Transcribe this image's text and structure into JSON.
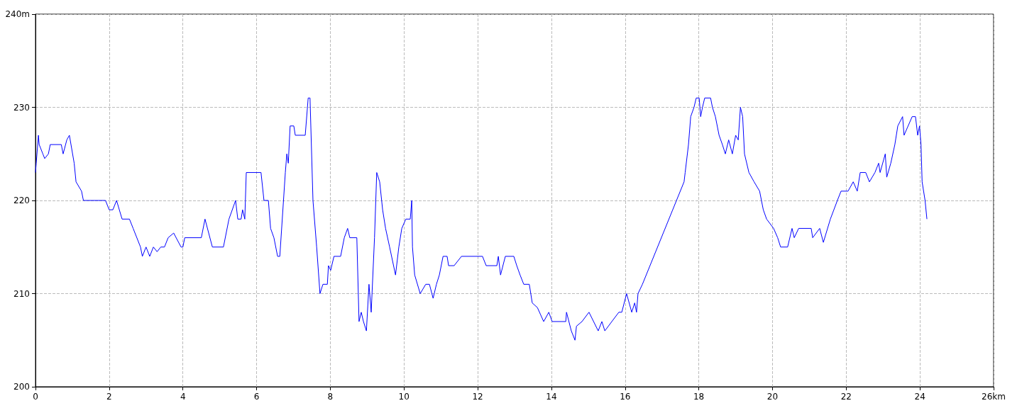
{
  "chart_data": {
    "type": "line",
    "marker": "none",
    "line_style": "solid",
    "grid": true,
    "xlim": [
      0,
      26
    ],
    "xticks": [
      0,
      2,
      4,
      6,
      8,
      10,
      12,
      14,
      16,
      18,
      20,
      22,
      24,
      {
        "value": 26,
        "label": "26km"
      }
    ],
    "ylim": [
      200,
      240
    ],
    "yticks": [
      200,
      210,
      220,
      230,
      {
        "value": 240,
        "label": "240m"
      }
    ],
    "series": [
      {
        "color": "#0000ff",
        "x": [
          0,
          0.02,
          0.08,
          0.1,
          0.2,
          0.25,
          0.35,
          0.4,
          0.7,
          0.75,
          0.85,
          0.92,
          1.05,
          1.1,
          1.25,
          1.3,
          1.9,
          2.0,
          2.1,
          2.2,
          2.35,
          2.55,
          2.65,
          2.85,
          2.9,
          3.0,
          3.1,
          3.2,
          3.3,
          3.4,
          3.5,
          3.6,
          3.75,
          3.95,
          4.0,
          4.05,
          4.5,
          4.6,
          4.8,
          5.1,
          5.25,
          5.43,
          5.49,
          5.58,
          5.62,
          5.68,
          5.72,
          6.12,
          6.2,
          6.32,
          6.38,
          6.47,
          6.57,
          6.63,
          6.78,
          6.82,
          6.86,
          6.91,
          7.01,
          7.05,
          7.32,
          7.4,
          7.45,
          7.53,
          7.63,
          7.72,
          7.8,
          7.92,
          7.95,
          8.01,
          8.1,
          8.28,
          8.38,
          8.47,
          8.53,
          8.72,
          8.78,
          8.84,
          8.9,
          8.98,
          9.05,
          9.11,
          9.2,
          9.26,
          9.34,
          9.42,
          9.5,
          9.61,
          9.77,
          9.86,
          9.94,
          10.05,
          10.17,
          10.21,
          10.23,
          10.29,
          10.44,
          10.59,
          10.69,
          10.79,
          10.88,
          10.96,
          11.06,
          11.17,
          11.21,
          11.36,
          11.56,
          12.13,
          12.23,
          12.52,
          12.56,
          12.62,
          12.75,
          12.98,
          13.06,
          13.15,
          13.25,
          13.4,
          13.48,
          13.62,
          13.79,
          13.93,
          14.02,
          14.39,
          14.41,
          14.54,
          14.64,
          14.68,
          14.83,
          15.02,
          15.27,
          15.37,
          15.45,
          15.64,
          15.83,
          15.91,
          16.04,
          16.18,
          16.26,
          16.31,
          16.35,
          16.47,
          17.6,
          17.63,
          17.72,
          17.78,
          17.87,
          17.93,
          18.01,
          18.05,
          18.1,
          18.16,
          18.32,
          18.37,
          18.45,
          18.55,
          18.64,
          18.72,
          18.81,
          18.91,
          19.0,
          19.07,
          19.13,
          19.19,
          19.24,
          19.36,
          19.5,
          19.65,
          19.75,
          19.84,
          20.03,
          20.14,
          20.22,
          20.41,
          20.53,
          20.59,
          20.71,
          21.05,
          21.09,
          21.28,
          21.38,
          21.57,
          21.76,
          21.86,
          22.05,
          22.19,
          22.3,
          22.38,
          22.53,
          22.63,
          22.78,
          22.88,
          22.92,
          23.06,
          23.1,
          23.21,
          23.32,
          23.4,
          23.53,
          23.57,
          23.79,
          23.88,
          23.94,
          23.99,
          24.03,
          24.06,
          24.14,
          24.19
        ],
        "values": [
          223,
          224,
          227,
          226,
          225,
          224.5,
          225,
          226,
          226,
          225,
          226.5,
          227,
          224,
          222,
          221,
          220,
          220,
          219,
          219,
          220,
          218,
          218,
          217,
          215,
          214,
          215,
          214,
          215,
          214.5,
          215,
          215,
          216,
          216.5,
          215,
          215,
          216,
          216,
          218,
          215,
          215,
          218,
          220,
          218,
          218,
          219,
          218,
          223,
          223,
          220,
          220,
          217,
          216,
          214,
          214,
          223,
          225,
          224,
          228,
          228,
          227,
          227,
          231,
          231,
          220,
          215,
          210,
          211,
          211,
          213,
          212.5,
          214,
          214,
          216,
          217,
          216,
          216,
          207,
          208,
          207,
          206,
          211,
          208,
          216,
          223,
          222,
          219,
          217,
          215,
          212,
          215,
          217,
          218,
          218,
          220,
          215,
          212,
          210,
          211,
          211,
          209.5,
          211,
          212,
          214,
          214,
          213,
          213,
          214,
          214,
          213,
          213,
          214,
          212,
          214,
          214,
          213,
          212,
          211,
          211,
          209,
          208.5,
          207,
          208,
          207,
          207,
          208,
          206,
          205,
          206.5,
          207,
          208,
          206,
          207,
          206,
          207,
          208,
          208,
          210,
          208,
          209,
          208,
          210,
          211,
          222,
          223,
          226,
          229,
          230,
          231,
          231,
          229,
          230,
          231,
          231,
          230,
          229,
          227,
          226,
          225,
          226.5,
          225,
          227,
          226.5,
          230,
          229,
          225,
          223,
          222,
          221,
          219,
          218,
          217,
          216,
          215,
          215,
          217,
          216,
          217,
          217,
          216,
          217,
          215.5,
          218,
          220,
          221,
          221,
          222,
          221,
          223,
          223,
          222,
          223,
          224,
          223,
          225,
          222.5,
          224,
          226,
          228,
          229,
          227,
          229,
          229,
          227,
          228,
          226,
          222,
          220,
          218
        ]
      }
    ]
  }
}
